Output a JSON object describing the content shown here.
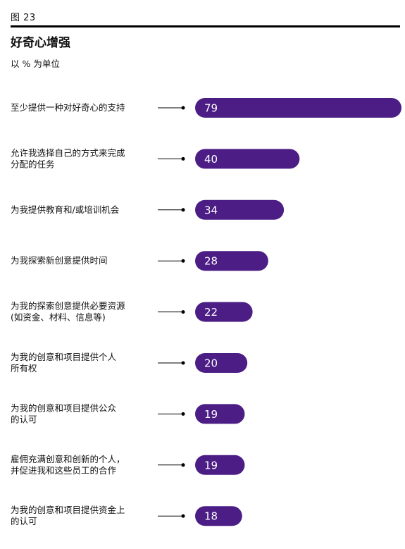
{
  "figure_label": "图 23",
  "title": "好奇心增强",
  "subtitle": "以 % 为单位",
  "colors": {
    "bar": "#4b1d85",
    "rule": "#000000",
    "leader": "#000000"
  },
  "chart_data": {
    "type": "bar",
    "orientation": "horizontal",
    "title": "好奇心增强",
    "unit_label": "以 % 为单位",
    "categories": [
      "至少提供一种对好奇心的支持",
      "允许我选择自己的方式来完成\n分配的任务",
      "为我提供教育和/或培训机会",
      "为我探索新创意提供时间",
      "为我的探索创意提供必要资源\n(如资金、材料、信息等)",
      "为我的创意和项目提供个人\n所有权",
      "为我的创意和项目提供公众\n的认可",
      "雇佣充满创意和创新的个人，\n并促进我和这些员工的合作",
      "为我的创意和项目提供资金上\n的认可"
    ],
    "values": [
      79,
      40,
      34,
      28,
      22,
      20,
      19,
      19,
      18
    ],
    "xlim": [
      0,
      79
    ],
    "grid": false,
    "legend": "none"
  }
}
